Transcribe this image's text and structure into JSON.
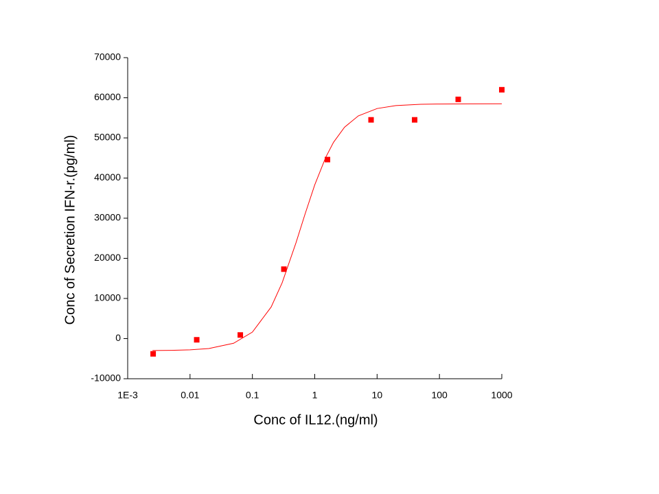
{
  "chart_data": {
    "type": "scatter",
    "x_label": "Conc of IL12.(ng/ml)",
    "y_label": "Conc of Secretion IFN-r.(pg/ml)",
    "xscale": "log",
    "xlim": [
      0.001,
      1000
    ],
    "xticks": [
      {
        "value": 0.001,
        "label": "1E-3"
      },
      0.01,
      0.1,
      1,
      10,
      100,
      1000
    ],
    "ylim": [
      -10000,
      70000
    ],
    "yticks": [
      -10000,
      0,
      10000,
      20000,
      30000,
      40000,
      50000,
      60000,
      70000
    ],
    "series": [
      {
        "kind": "points",
        "color": "#ff0000",
        "x": [
          0.00256,
          0.0128,
          0.064,
          0.32,
          1.6,
          8,
          40,
          200,
          1000
        ],
        "values": [
          -3800,
          -300,
          900,
          17300,
          44600,
          54500,
          54500,
          59600,
          62000
        ]
      },
      {
        "kind": "line",
        "color": "#ff0000",
        "x": [
          0.0025,
          0.005,
          0.01,
          0.02,
          0.05,
          0.1,
          0.2,
          0.3,
          0.5,
          0.7,
          1,
          1.5,
          2,
          3,
          5,
          10,
          20,
          50,
          100,
          300,
          1000
        ],
        "values": [
          -2970,
          -2925,
          -2800,
          -2480,
          -1160,
          1620,
          7870,
          13900,
          23860,
          31050,
          38300,
          45160,
          48900,
          52660,
          55490,
          57320,
          58050,
          58370,
          58450,
          58490,
          58500
        ]
      }
    ]
  }
}
